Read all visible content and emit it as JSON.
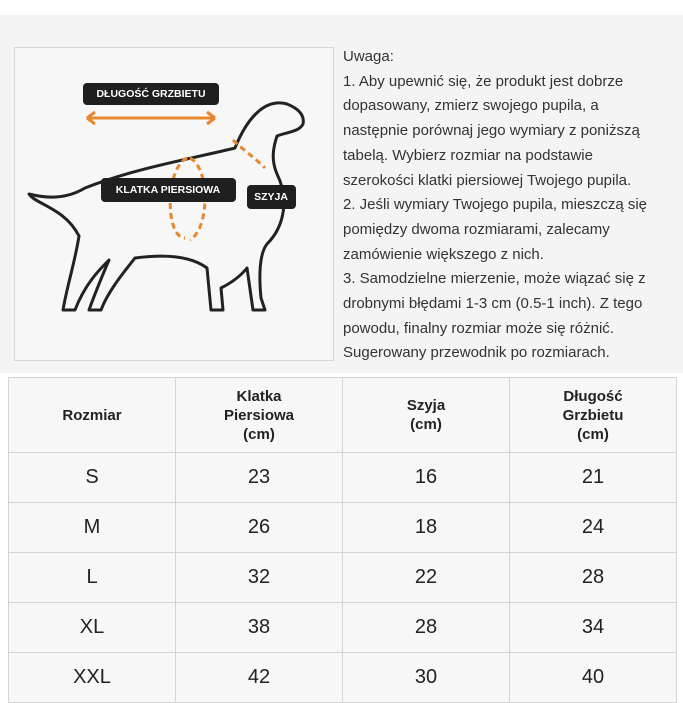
{
  "illustration": {
    "labels": [
      "DŁUGOŚĆ GRZBIETU",
      "KLATKA PIERSIOWA",
      "SZYJA"
    ]
  },
  "note": {
    "lines": [
      "Uwaga:",
      "1. Aby upewnić się, że produkt jest dobrze",
      "dopasowany, zmierz swojego pupila, a",
      "następnie porównaj jego wymiary z poniższą",
      "tabelą. Wybierz rozmiar na podstawie",
      "szerokości klatki piersiowej Twojego pupila.",
      "2. Jeśli wymiary Twojego pupila, mieszczą się",
      "pomiędzy dwoma rozmiarami, zalecamy",
      "zamówienie większego z nich.",
      "3. Samodzielne mierzenie, może wiązać się z",
      "drobnymi błędami 1-3 cm (0.5-1 inch). Z tego",
      "powodu, finalny rozmiar może się różnić.",
      "Sugerowany przewodnik po rozmiarach."
    ]
  },
  "table": {
    "header": [
      [
        "Rozmiar"
      ],
      [
        "Klatka",
        "Piersiowa",
        "(cm)"
      ],
      [
        "Szyja",
        "(cm)"
      ],
      [
        "Długość",
        "Grzbietu",
        "(cm)"
      ]
    ],
    "rows": [
      [
        "S",
        23,
        16,
        21
      ],
      [
        "M",
        26,
        18,
        24
      ],
      [
        "L",
        32,
        22,
        28
      ],
      [
        "XL",
        38,
        28,
        34
      ],
      [
        "XXL",
        42,
        30,
        40
      ]
    ]
  }
}
